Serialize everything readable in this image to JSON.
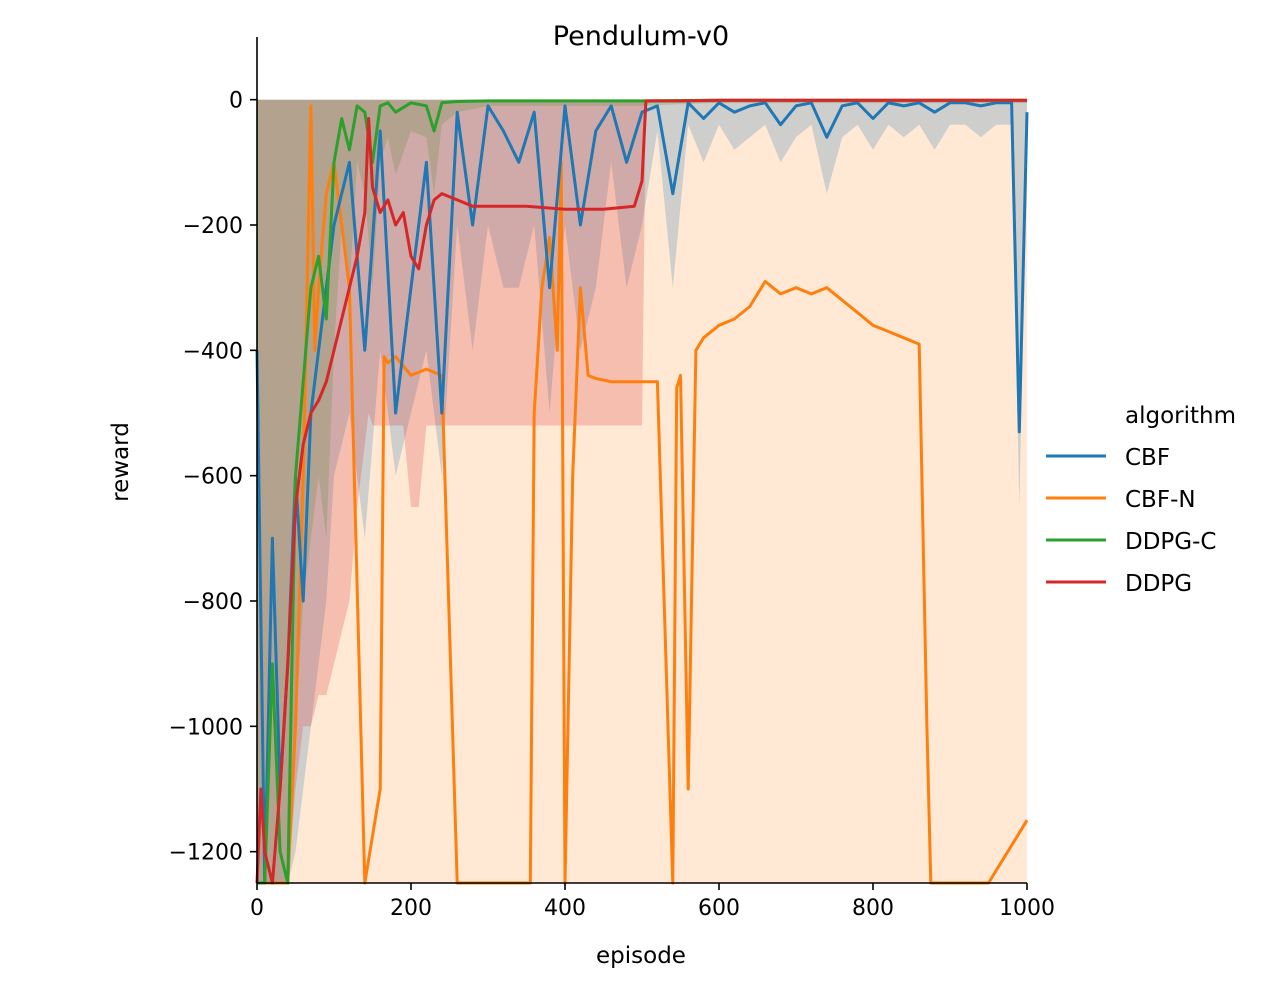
{
  "chart_data": {
    "type": "line",
    "title": "Pendulum-v0",
    "xlabel": "episode",
    "ylabel": "reward",
    "xlim": [
      0,
      1000
    ],
    "ylim": [
      -1250,
      100
    ],
    "x_ticks": [
      "0",
      "200",
      "400",
      "600",
      "800",
      "1000"
    ],
    "y_ticks": [
      "0",
      "−200",
      "−400",
      "−600",
      "−800",
      "−1000",
      "−1200"
    ],
    "legend_title": "algorithm",
    "legend_position": "right",
    "grid": false,
    "series": [
      {
        "name": "CBF",
        "color": "#1f77b4",
        "x": [
          0,
          10,
          20,
          30,
          40,
          50,
          60,
          70,
          80,
          90,
          100,
          120,
          140,
          160,
          180,
          200,
          220,
          240,
          260,
          280,
          300,
          320,
          340,
          360,
          380,
          400,
          420,
          440,
          460,
          480,
          500,
          520,
          540,
          560,
          580,
          600,
          620,
          640,
          660,
          680,
          700,
          720,
          740,
          760,
          780,
          800,
          820,
          840,
          860,
          880,
          900,
          920,
          940,
          960,
          980,
          990,
          1000
        ],
        "y": [
          -400,
          -1250,
          -700,
          -1100,
          -900,
          -600,
          -800,
          -500,
          -400,
          -300,
          -200,
          -100,
          -400,
          -50,
          -500,
          -300,
          -100,
          -500,
          -20,
          -200,
          -10,
          -50,
          -100,
          -20,
          -300,
          -10,
          -200,
          -50,
          -10,
          -100,
          -20,
          -10,
          -150,
          -5,
          -30,
          -5,
          -20,
          -10,
          -5,
          -40,
          -10,
          -5,
          -60,
          -10,
          -5,
          -30,
          -5,
          -10,
          -5,
          -20,
          -5,
          -5,
          -10,
          -5,
          -5,
          -530,
          -20
        ],
        "band_lower": [
          -1250,
          -1250,
          -1250,
          -1250,
          -1250,
          -1200,
          -1100,
          -1000,
          -900,
          -800,
          -600,
          -500,
          -700,
          -400,
          -600,
          -500,
          -400,
          -600,
          -200,
          -400,
          -200,
          -300,
          -300,
          -200,
          -500,
          -200,
          -400,
          -300,
          -100,
          -300,
          -200,
          -50,
          -300,
          -40,
          -100,
          -40,
          -80,
          -60,
          -40,
          -100,
          -60,
          -40,
          -150,
          -60,
          -40,
          -80,
          -40,
          -60,
          -40,
          -80,
          -40,
          -40,
          -60,
          -40,
          -40,
          -650,
          -60
        ],
        "band_upper": [
          0,
          0,
          0,
          0,
          0,
          0,
          0,
          0,
          0,
          0,
          0,
          0,
          0,
          0,
          0,
          0,
          0,
          0,
          0,
          0,
          0,
          0,
          0,
          0,
          0,
          0,
          0,
          0,
          0,
          0,
          0,
          0,
          0,
          0,
          0,
          0,
          0,
          0,
          0,
          0,
          0,
          0,
          0,
          0,
          0,
          0,
          0,
          0,
          0,
          0,
          0,
          0,
          0,
          0,
          0,
          0,
          0
        ]
      },
      {
        "name": "CBF-N",
        "color": "#ff7f0e",
        "x": [
          0,
          10,
          20,
          30,
          40,
          50,
          60,
          70,
          75,
          80,
          90,
          100,
          120,
          140,
          160,
          165,
          170,
          180,
          200,
          220,
          240,
          260,
          262,
          300,
          340,
          355,
          360,
          370,
          380,
          390,
          395,
          400,
          410,
          420,
          430,
          440,
          460,
          480,
          500,
          520,
          540,
          545,
          550,
          560,
          570,
          580,
          600,
          620,
          640,
          660,
          670,
          680,
          700,
          720,
          740,
          760,
          780,
          800,
          820,
          840,
          860,
          870,
          875,
          880,
          900,
          950,
          1000
        ],
        "y": [
          -1250,
          -1250,
          -1250,
          -1250,
          -1250,
          -1000,
          -600,
          -10,
          -400,
          -300,
          -150,
          -100,
          -300,
          -1250,
          -1100,
          -410,
          -420,
          -410,
          -440,
          -430,
          -440,
          -1250,
          -1250,
          -1250,
          -1250,
          -1250,
          -500,
          -300,
          -220,
          -400,
          -100,
          -1250,
          -600,
          -300,
          -440,
          -445,
          -450,
          -450,
          -450,
          -450,
          -1250,
          -460,
          -440,
          -1100,
          -400,
          -380,
          -360,
          -350,
          -330,
          -290,
          -300,
          -310,
          -300,
          -310,
          -300,
          -320,
          -340,
          -360,
          -370,
          -380,
          -390,
          -1000,
          -1250,
          -1250,
          -1250,
          -1250,
          -1150
        ],
        "band_lower": [
          -1250,
          -1250,
          -1250,
          -1250,
          -1250,
          -1250,
          -1250,
          -1250,
          -1250,
          -1250,
          -1250,
          -1250,
          -1250,
          -1250,
          -1250,
          -1250,
          -1250,
          -1250,
          -1250,
          -1250,
          -1250,
          -1250,
          -1250,
          -1250,
          -1250,
          -1250,
          -1250,
          -1250,
          -1250,
          -1250,
          -1250,
          -1250,
          -1250,
          -1250,
          -1250,
          -1250,
          -1250,
          -1250,
          -1250,
          -1250,
          -1250,
          -1250,
          -1250,
          -1250,
          -1250,
          -1250,
          -1250,
          -1250,
          -1250,
          -1250,
          -1250,
          -1250,
          -1250,
          -1250,
          -1250,
          -1250,
          -1250,
          -1250,
          -1250,
          -1250,
          -1250,
          -1250,
          -1250,
          -1250,
          -1250,
          -1250,
          -1250
        ],
        "band_upper": [
          0,
          0,
          0,
          0,
          0,
          0,
          0,
          0,
          0,
          0,
          0,
          0,
          0,
          0,
          0,
          0,
          0,
          0,
          0,
          0,
          0,
          0,
          0,
          0,
          0,
          0,
          0,
          0,
          0,
          0,
          0,
          0,
          0,
          0,
          0,
          0,
          0,
          0,
          0,
          0,
          0,
          0,
          0,
          0,
          0,
          0,
          0,
          0,
          0,
          0,
          0,
          0,
          0,
          0,
          0,
          0,
          0,
          0,
          0,
          0,
          0,
          0,
          0,
          0,
          0,
          0,
          0
        ]
      },
      {
        "name": "DDPG-C",
        "color": "#2ca02c",
        "x": [
          0,
          10,
          20,
          30,
          40,
          50,
          60,
          70,
          80,
          90,
          100,
          110,
          120,
          130,
          140,
          150,
          160,
          170,
          180,
          200,
          220,
          230,
          240,
          260,
          300,
          400,
          500,
          600,
          700,
          800,
          900,
          1000
        ],
        "y": [
          -1250,
          -1250,
          -900,
          -1200,
          -1250,
          -600,
          -450,
          -300,
          -250,
          -350,
          -100,
          -30,
          -80,
          -10,
          -20,
          -100,
          -10,
          -5,
          -20,
          -5,
          -10,
          -50,
          -5,
          -3,
          -2,
          -2,
          -2,
          -1,
          -1,
          -1,
          -1,
          -1
        ],
        "band_lower": [
          -1250,
          -1250,
          -1250,
          -1250,
          -1250,
          -1000,
          -800,
          -700,
          -600,
          -700,
          -400,
          -200,
          -300,
          -100,
          -150,
          -300,
          -100,
          -60,
          -120,
          -50,
          -60,
          -150,
          -40,
          -20,
          -10,
          -10,
          -10,
          -5,
          -5,
          -5,
          -5,
          -5
        ],
        "band_upper": [
          0,
          0,
          0,
          0,
          0,
          0,
          0,
          0,
          0,
          0,
          0,
          0,
          0,
          0,
          0,
          0,
          0,
          0,
          0,
          0,
          0,
          0,
          0,
          0,
          0,
          0,
          0,
          0,
          0,
          0,
          0,
          0
        ]
      },
      {
        "name": "DDPG",
        "color": "#d62728",
        "x": [
          0,
          5,
          10,
          20,
          30,
          40,
          50,
          60,
          70,
          80,
          90,
          100,
          110,
          120,
          130,
          140,
          145,
          150,
          160,
          170,
          180,
          190,
          200,
          210,
          220,
          230,
          240,
          260,
          280,
          300,
          350,
          400,
          450,
          490,
          500,
          505,
          510,
          550,
          600,
          700,
          800,
          900,
          1000
        ],
        "y": [
          -1250,
          -1100,
          -1200,
          -1250,
          -1100,
          -900,
          -650,
          -550,
          -500,
          -480,
          -450,
          -400,
          -350,
          -300,
          -250,
          -180,
          -30,
          -140,
          -180,
          -160,
          -200,
          -180,
          -250,
          -270,
          -200,
          -160,
          -150,
          -160,
          -170,
          -170,
          -170,
          -175,
          -175,
          -170,
          -130,
          -2,
          -2,
          -2,
          -1,
          -1,
          -1,
          -1,
          -1
        ],
        "band_lower": [
          -1250,
          -1250,
          -1250,
          -1250,
          -1250,
          -1250,
          -1100,
          -1000,
          -1000,
          -950,
          -950,
          -900,
          -850,
          -800,
          -650,
          -550,
          -500,
          -520,
          -520,
          -520,
          -520,
          -520,
          -650,
          -650,
          -520,
          -520,
          -520,
          -520,
          -520,
          -520,
          -520,
          -520,
          -520,
          -520,
          -520,
          -10,
          -5,
          -5,
          -5,
          -5,
          -5,
          -5,
          -5
        ],
        "band_upper": [
          0,
          0,
          0,
          0,
          0,
          0,
          0,
          0,
          0,
          0,
          0,
          0,
          0,
          0,
          0,
          0,
          0,
          0,
          0,
          0,
          0,
          0,
          0,
          0,
          0,
          0,
          0,
          0,
          0,
          0,
          0,
          0,
          0,
          0,
          0,
          0,
          0,
          0,
          0,
          0,
          0,
          0,
          0
        ]
      }
    ]
  }
}
